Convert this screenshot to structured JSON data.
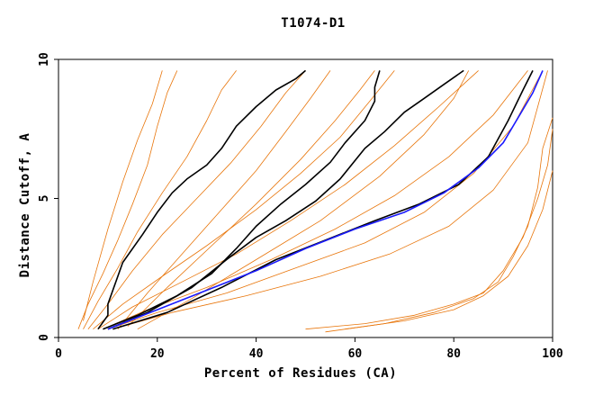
{
  "chart_data": {
    "type": "line",
    "title": "T1074-D1",
    "xlabel": "Percent of Residues (CA)",
    "ylabel": "Distance Cutoff, A",
    "xlim": [
      0,
      100
    ],
    "ylim": [
      0,
      10
    ],
    "x_ticks": [
      "0",
      "20",
      "40",
      "60",
      "80",
      "100"
    ],
    "y_ticks": [
      "0",
      "5",
      "10"
    ],
    "colors": {
      "background_models": "#e8750a",
      "highlight_black": "#000000",
      "highlight_blue": "#1a1aff"
    },
    "background_models_note_count": 6,
    "series": [
      {
        "color": "#e8750a",
        "points": [
          [
            4,
            0.3
          ],
          [
            6,
            1.2
          ],
          [
            9,
            2.3
          ],
          [
            12,
            3.5
          ],
          [
            15,
            4.8
          ],
          [
            18,
            6.2
          ],
          [
            20,
            7.6
          ],
          [
            22,
            8.8
          ],
          [
            24,
            9.6
          ]
        ]
      },
      {
        "color": "#e8750a",
        "points": [
          [
            5,
            0.3
          ],
          [
            8,
            1.3
          ],
          [
            12,
            2.5
          ],
          [
            16,
            3.8
          ],
          [
            21,
            5.2
          ],
          [
            26,
            6.5
          ],
          [
            30,
            7.8
          ],
          [
            33,
            8.9
          ],
          [
            36,
            9.6
          ]
        ]
      },
      {
        "color": "#e8750a",
        "points": [
          [
            6,
            0.3
          ],
          [
            10,
            1.2
          ],
          [
            15,
            2.4
          ],
          [
            21,
            3.7
          ],
          [
            28,
            5.0
          ],
          [
            35,
            6.3
          ],
          [
            41,
            7.6
          ],
          [
            46,
            8.8
          ],
          [
            50,
            9.6
          ]
        ]
      },
      {
        "color": "#e8750a",
        "points": [
          [
            7,
            0.3
          ],
          [
            13,
            1.2
          ],
          [
            21,
            2.2
          ],
          [
            30,
            3.3
          ],
          [
            40,
            4.6
          ],
          [
            49,
            5.9
          ],
          [
            57,
            7.2
          ],
          [
            63,
            8.5
          ],
          [
            68,
            9.6
          ]
        ]
      },
      {
        "color": "#e8750a",
        "points": [
          [
            8,
            0.3
          ],
          [
            15,
            1.1
          ],
          [
            25,
            2.0
          ],
          [
            36,
            3.0
          ],
          [
            47,
            4.2
          ],
          [
            58,
            5.5
          ],
          [
            68,
            6.9
          ],
          [
            77,
            8.3
          ],
          [
            85,
            9.6
          ]
        ]
      },
      {
        "color": "#e8750a",
        "points": [
          [
            9,
            0.3
          ],
          [
            18,
            1.0
          ],
          [
            30,
            1.8
          ],
          [
            43,
            2.8
          ],
          [
            56,
            3.9
          ],
          [
            68,
            5.1
          ],
          [
            79,
            6.5
          ],
          [
            88,
            8.0
          ],
          [
            95,
            9.6
          ]
        ]
      },
      {
        "color": "#e8750a",
        "points": [
          [
            10,
            0.3
          ],
          [
            20,
            0.9
          ],
          [
            34,
            1.6
          ],
          [
            48,
            2.5
          ],
          [
            62,
            3.4
          ],
          [
            74,
            4.5
          ],
          [
            84,
            5.9
          ],
          [
            92,
            7.6
          ],
          [
            98,
            9.6
          ]
        ]
      },
      {
        "color": "#e8750a",
        "points": [
          [
            11,
            0.3
          ],
          [
            23,
            0.9
          ],
          [
            38,
            1.5
          ],
          [
            53,
            2.2
          ],
          [
            67,
            3.0
          ],
          [
            79,
            4.0
          ],
          [
            88,
            5.3
          ],
          [
            95,
            7.0
          ],
          [
            99,
            9.6
          ]
        ]
      },
      {
        "color": "#e8750a",
        "points": [
          [
            5,
            0.6
          ],
          [
            7,
            2.0
          ],
          [
            10,
            3.9
          ],
          [
            13,
            5.6
          ],
          [
            16,
            7.1
          ],
          [
            19,
            8.4
          ],
          [
            21,
            9.6
          ]
        ]
      },
      {
        "color": "#e8750a",
        "points": [
          [
            12,
            0.3
          ],
          [
            18,
            1.6
          ],
          [
            26,
            3.2
          ],
          [
            33,
            4.6
          ],
          [
            40,
            6.0
          ],
          [
            46,
            7.4
          ],
          [
            51,
            8.6
          ],
          [
            55,
            9.6
          ]
        ]
      },
      {
        "color": "#e8750a",
        "points": [
          [
            14,
            0.4
          ],
          [
            22,
            1.8
          ],
          [
            31,
            3.3
          ],
          [
            40,
            4.8
          ],
          [
            49,
            6.4
          ],
          [
            56,
            7.8
          ],
          [
            61,
            8.9
          ],
          [
            64,
            9.6
          ]
        ]
      },
      {
        "color": "#e8750a",
        "points": [
          [
            16,
            0.3
          ],
          [
            27,
            1.4
          ],
          [
            40,
            2.8
          ],
          [
            53,
            4.2
          ],
          [
            65,
            5.8
          ],
          [
            74,
            7.3
          ],
          [
            80,
            8.6
          ],
          [
            83,
            9.6
          ]
        ]
      },
      {
        "color": "#e8750a",
        "points": [
          [
            50,
            0.3
          ],
          [
            62,
            0.5
          ],
          [
            72,
            0.8
          ],
          [
            80,
            1.2
          ],
          [
            86,
            1.6
          ],
          [
            90,
            2.4
          ],
          [
            94,
            3.6
          ],
          [
            97,
            5.0
          ],
          [
            99,
            6.2
          ],
          [
            100,
            7.5
          ]
        ]
      },
      {
        "color": "#e8750a",
        "points": [
          [
            54,
            0.2
          ],
          [
            66,
            0.5
          ],
          [
            76,
            0.9
          ],
          [
            84,
            1.4
          ],
          [
            89,
            2.0
          ],
          [
            92,
            2.9
          ],
          [
            95,
            4.0
          ],
          [
            97,
            5.4
          ],
          [
            98,
            6.8
          ],
          [
            100,
            7.9
          ]
        ]
      },
      {
        "color": "#e8750a",
        "points": [
          [
            58,
            0.3
          ],
          [
            70,
            0.6
          ],
          [
            80,
            1.0
          ],
          [
            86,
            1.5
          ],
          [
            91,
            2.2
          ],
          [
            95,
            3.3
          ],
          [
            98,
            4.6
          ],
          [
            100,
            6.0
          ]
        ]
      },
      {
        "color": "#000000",
        "points": [
          [
            8,
            0.3
          ],
          [
            10,
            0.8
          ],
          [
            10,
            1.2
          ],
          [
            13,
            2.7
          ],
          [
            17,
            3.7
          ],
          [
            20,
            4.5
          ],
          [
            23,
            5.2
          ],
          [
            26,
            5.7
          ],
          [
            30,
            6.2
          ],
          [
            33,
            6.8
          ],
          [
            36,
            7.6
          ],
          [
            40,
            8.3
          ],
          [
            44,
            8.9
          ],
          [
            48,
            9.3
          ],
          [
            50,
            9.6
          ]
        ]
      },
      {
        "color": "#000000",
        "points": [
          [
            9,
            0.3
          ],
          [
            16,
            0.8
          ],
          [
            24,
            1.5
          ],
          [
            31,
            2.3
          ],
          [
            36,
            3.2
          ],
          [
            40,
            4.0
          ],
          [
            45,
            4.8
          ],
          [
            50,
            5.5
          ],
          [
            55,
            6.3
          ],
          [
            58,
            7.0
          ],
          [
            62,
            7.8
          ],
          [
            64,
            8.5
          ],
          [
            64,
            9.0
          ],
          [
            65,
            9.6
          ]
        ]
      },
      {
        "color": "#000000",
        "points": [
          [
            10,
            0.3
          ],
          [
            18,
            0.9
          ],
          [
            27,
            1.8
          ],
          [
            34,
            2.8
          ],
          [
            40,
            3.6
          ],
          [
            46,
            4.2
          ],
          [
            52,
            4.9
          ],
          [
            57,
            5.7
          ],
          [
            62,
            6.8
          ],
          [
            66,
            7.4
          ],
          [
            70,
            8.1
          ],
          [
            74,
            8.6
          ],
          [
            78,
            9.1
          ],
          [
            82,
            9.6
          ]
        ]
      },
      {
        "color": "#000000",
        "points": [
          [
            11,
            0.3
          ],
          [
            22,
            0.9
          ],
          [
            33,
            1.8
          ],
          [
            44,
            2.8
          ],
          [
            54,
            3.5
          ],
          [
            64,
            4.2
          ],
          [
            73,
            4.8
          ],
          [
            81,
            5.5
          ],
          [
            87,
            6.5
          ],
          [
            91,
            7.8
          ],
          [
            94,
            8.9
          ],
          [
            96,
            9.6
          ]
        ]
      },
      {
        "color": "#1a1aff",
        "points": [
          [
            10,
            0.3
          ],
          [
            20,
            1.0
          ],
          [
            30,
            1.7
          ],
          [
            40,
            2.4
          ],
          [
            50,
            3.2
          ],
          [
            60,
            3.9
          ],
          [
            70,
            4.5
          ],
          [
            78,
            5.2
          ],
          [
            85,
            6.1
          ],
          [
            90,
            7.0
          ],
          [
            93,
            7.9
          ],
          [
            96,
            8.8
          ],
          [
            98,
            9.6
          ]
        ]
      }
    ]
  }
}
